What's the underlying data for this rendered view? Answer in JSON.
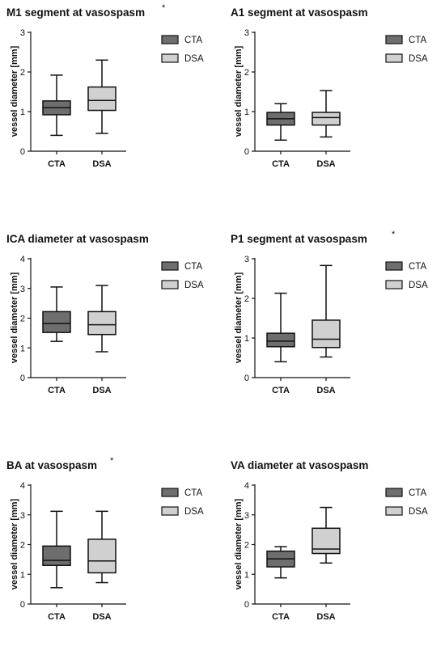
{
  "colors": {
    "CTA": "#6e6e6e",
    "DSA": "#d0d0d0",
    "stroke": "#111111"
  },
  "chart_data": [
    {
      "type": "box",
      "title": "M1 segment at vasospasm",
      "significance": "*",
      "ylabel": "vessel diameter [mm]",
      "ylim": [
        0,
        3
      ],
      "yticks": [
        "0",
        "1",
        "2",
        "3"
      ],
      "legend": [
        "CTA",
        "DSA"
      ],
      "categories": [
        "CTA",
        "DSA"
      ],
      "series": [
        {
          "name": "CTA",
          "min": 0.4,
          "q1": 0.92,
          "median": 1.1,
          "q3": 1.27,
          "max": 1.92
        },
        {
          "name": "DSA",
          "min": 0.45,
          "q1": 1.03,
          "median": 1.28,
          "q3": 1.62,
          "max": 2.3
        }
      ]
    },
    {
      "type": "box",
      "title": "A1 segment at vasospasm",
      "significance": "",
      "ylabel": "vessel diameter [mm]",
      "ylim": [
        0,
        3
      ],
      "yticks": [
        "0",
        "1",
        "2",
        "3"
      ],
      "legend": [
        "CTA",
        "DSA"
      ],
      "categories": [
        "CTA",
        "DSA"
      ],
      "series": [
        {
          "name": "CTA",
          "min": 0.28,
          "q1": 0.66,
          "median": 0.82,
          "q3": 0.98,
          "max": 1.2
        },
        {
          "name": "DSA",
          "min": 0.36,
          "q1": 0.66,
          "median": 0.85,
          "q3": 0.98,
          "max": 1.53
        }
      ]
    },
    {
      "type": "box",
      "title": "ICA diameter at vasospasm",
      "significance": "",
      "ylabel": "vessel diameter [mm]",
      "ylim": [
        0,
        4
      ],
      "yticks": [
        "0",
        "1",
        "2",
        "3",
        "4"
      ],
      "legend": [
        "CTA",
        "DSA"
      ],
      "categories": [
        "CTA",
        "DSA"
      ],
      "series": [
        {
          "name": "CTA",
          "min": 1.22,
          "q1": 1.52,
          "median": 1.82,
          "q3": 2.22,
          "max": 3.05
        },
        {
          "name": "DSA",
          "min": 0.87,
          "q1": 1.45,
          "median": 1.78,
          "q3": 2.22,
          "max": 3.1
        }
      ]
    },
    {
      "type": "box",
      "title": "P1 segment at vasospasm",
      "significance": "*",
      "ylabel": "vessel diameter [mm]",
      "ylim": [
        0,
        3
      ],
      "yticks": [
        "0",
        "1",
        "2",
        "3"
      ],
      "legend": [
        "CTA",
        "DSA"
      ],
      "categories": [
        "CTA",
        "DSA"
      ],
      "series": [
        {
          "name": "CTA",
          "min": 0.4,
          "q1": 0.78,
          "median": 0.92,
          "q3": 1.12,
          "max": 2.13
        },
        {
          "name": "DSA",
          "min": 0.52,
          "q1": 0.76,
          "median": 0.97,
          "q3": 1.45,
          "max": 2.83
        }
      ]
    },
    {
      "type": "box",
      "title": "BA at vasospasm",
      "significance": "*",
      "ylabel": "vessel diameter [mm]",
      "ylim": [
        0,
        4
      ],
      "yticks": [
        "0",
        "1",
        "2",
        "3",
        "4"
      ],
      "legend": [
        "CTA",
        "DSA"
      ],
      "categories": [
        "CTA",
        "DSA"
      ],
      "series": [
        {
          "name": "CTA",
          "min": 0.55,
          "q1": 1.3,
          "median": 1.47,
          "q3": 1.95,
          "max": 3.12
        },
        {
          "name": "DSA",
          "min": 0.72,
          "q1": 1.05,
          "median": 1.45,
          "q3": 2.18,
          "max": 3.12
        }
      ]
    },
    {
      "type": "box",
      "title": "VA diameter at vasospasm",
      "significance": "",
      "ylabel": "vessel diameter [mm]",
      "ylim": [
        0,
        4
      ],
      "yticks": [
        "0",
        "1",
        "2",
        "3",
        "4"
      ],
      "legend": [
        "CTA",
        "DSA"
      ],
      "categories": [
        "CTA",
        "DSA"
      ],
      "series": [
        {
          "name": "CTA",
          "min": 0.88,
          "q1": 1.25,
          "median": 1.52,
          "q3": 1.78,
          "max": 1.93
        },
        {
          "name": "DSA",
          "min": 1.38,
          "q1": 1.7,
          "median": 1.85,
          "q3": 2.55,
          "max": 3.25
        }
      ]
    }
  ]
}
